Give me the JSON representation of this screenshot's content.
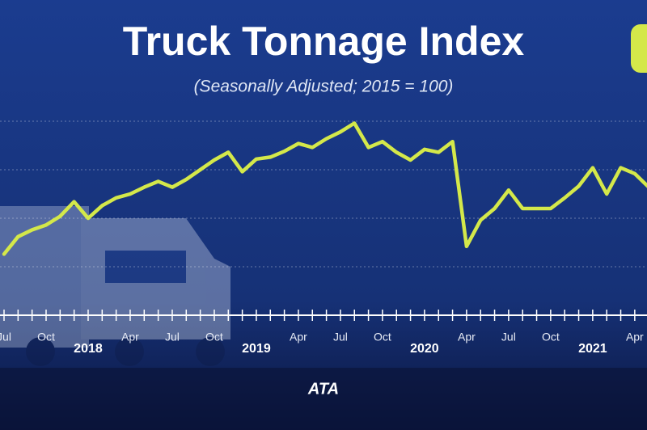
{
  "chart_data": {
    "type": "line",
    "title": "Truck Tonnage Index",
    "subtitle": "(Seasonally Adjusted; 2015 = 100)",
    "logo": "ATA",
    "categories": [
      "Jul",
      null,
      null,
      "Oct",
      null,
      null,
      "2018",
      null,
      null,
      "Apr",
      null,
      null,
      "Jul",
      null,
      null,
      "Oct",
      null,
      null,
      "2019",
      null,
      null,
      "Apr",
      null,
      null,
      "Jul",
      null,
      null,
      "Oct",
      null,
      null,
      "2020",
      null,
      null,
      "Apr",
      null,
      null,
      "Jul",
      null,
      null,
      "Oct",
      null,
      null,
      "2021",
      null,
      null,
      "Apr",
      null
    ],
    "values": [
      106.3,
      108.1,
      108.8,
      109.3,
      110.2,
      111.7,
      110,
      111.3,
      112.1,
      112.5,
      113.2,
      113.8,
      113.2,
      114,
      115,
      116,
      116.8,
      114.8,
      116.1,
      116.3,
      116.9,
      117.7,
      117.3,
      118.2,
      118.9,
      119.8,
      117.3,
      117.9,
      116.8,
      116,
      117.1,
      116.8,
      117.9,
      107.1,
      109.8,
      111,
      112.9,
      111,
      111,
      111,
      112.1,
      113.3,
      115.2,
      112.5,
      115.2,
      114.6,
      113.2
    ],
    "color": "#d4e84a",
    "ylim": [
      105,
      120
    ],
    "yticks": [
      105,
      110,
      115,
      120
    ],
    "grid": true
  }
}
